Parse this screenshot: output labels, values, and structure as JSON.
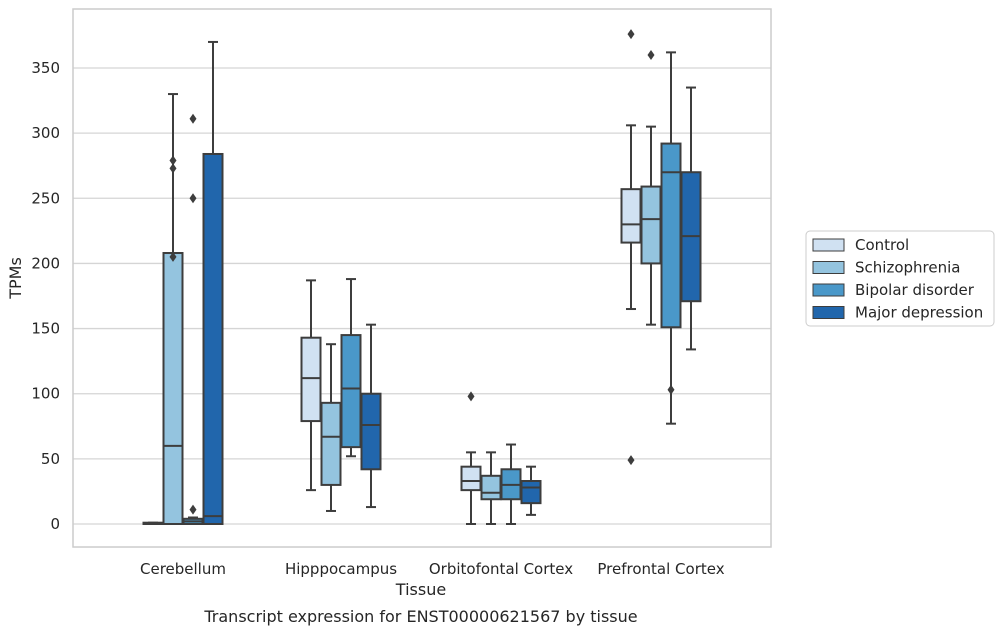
{
  "caption": "Transcript expression for ENST00000621567 by tissue",
  "chart_data": {
    "type": "box",
    "title": "",
    "xlabel": "Tissue",
    "ylabel": "TPMs",
    "ylim": [
      -18,
      393
    ],
    "yticks": [
      0,
      50,
      100,
      150,
      200,
      250,
      300,
      350
    ],
    "grid": "horizontal",
    "legend_position": "outside-right",
    "categories": [
      "Cerebellum",
      "Hipppocampus",
      "Orbitofontal Cortex",
      "Prefrontal Cortex"
    ],
    "series": [
      {
        "name": "Control",
        "color": "#d0e1f2",
        "boxes": [
          {
            "whisker_low": 0,
            "q1": 0,
            "median": 0,
            "q3": 1,
            "whisker_high": 1,
            "outliers": []
          },
          {
            "whisker_low": 26,
            "q1": 79,
            "median": 112,
            "q3": 143,
            "whisker_high": 187,
            "outliers": []
          },
          {
            "whisker_low": 0,
            "q1": 26,
            "median": 33,
            "q3": 44,
            "whisker_high": 55,
            "outliers": [
              98
            ]
          },
          {
            "whisker_low": 165,
            "q1": 216,
            "median": 230,
            "q3": 257,
            "whisker_high": 306,
            "outliers": [
              49,
              376
            ]
          }
        ]
      },
      {
        "name": "Schizophrenia",
        "color": "#94c4df",
        "boxes": [
          {
            "whisker_low": 0,
            "q1": 0,
            "median": 60,
            "q3": 208,
            "whisker_high": 330,
            "outliers": [
              205,
              273,
              279
            ]
          },
          {
            "whisker_low": 10,
            "q1": 30,
            "median": 67,
            "q3": 93,
            "whisker_high": 138,
            "outliers": []
          },
          {
            "whisker_low": 0,
            "q1": 19,
            "median": 24,
            "q3": 37,
            "whisker_high": 55,
            "outliers": []
          },
          {
            "whisker_low": 153,
            "q1": 200,
            "median": 234,
            "q3": 259,
            "whisker_high": 305,
            "outliers": [
              360
            ]
          }
        ]
      },
      {
        "name": "Bipolar disorder",
        "color": "#4a98c9",
        "boxes": [
          {
            "whisker_low": 0,
            "q1": 0,
            "median": 2,
            "q3": 4,
            "whisker_high": 5,
            "outliers": [
              11,
              250,
              311
            ]
          },
          {
            "whisker_low": 52,
            "q1": 59,
            "median": 104,
            "q3": 145,
            "whisker_high": 188,
            "outliers": []
          },
          {
            "whisker_low": 0,
            "q1": 19,
            "median": 30,
            "q3": 42,
            "whisker_high": 61,
            "outliers": []
          },
          {
            "whisker_low": 77,
            "q1": 151,
            "median": 270,
            "q3": 292,
            "whisker_high": 362,
            "outliers": [
              103
            ]
          }
        ]
      },
      {
        "name": "Major depression",
        "color": "#2166ac",
        "boxes": [
          {
            "whisker_low": 0,
            "q1": 0,
            "median": 6,
            "q3": 284,
            "whisker_high": 370,
            "outliers": []
          },
          {
            "whisker_low": 13,
            "q1": 42,
            "median": 76,
            "q3": 100,
            "whisker_high": 153,
            "outliers": []
          },
          {
            "whisker_low": 7,
            "q1": 16,
            "median": 28,
            "q3": 33,
            "whisker_high": 44,
            "outliers": []
          },
          {
            "whisker_low": 134,
            "q1": 171,
            "median": 221,
            "q3": 270,
            "whisker_high": 335,
            "outliers": []
          }
        ]
      }
    ]
  }
}
